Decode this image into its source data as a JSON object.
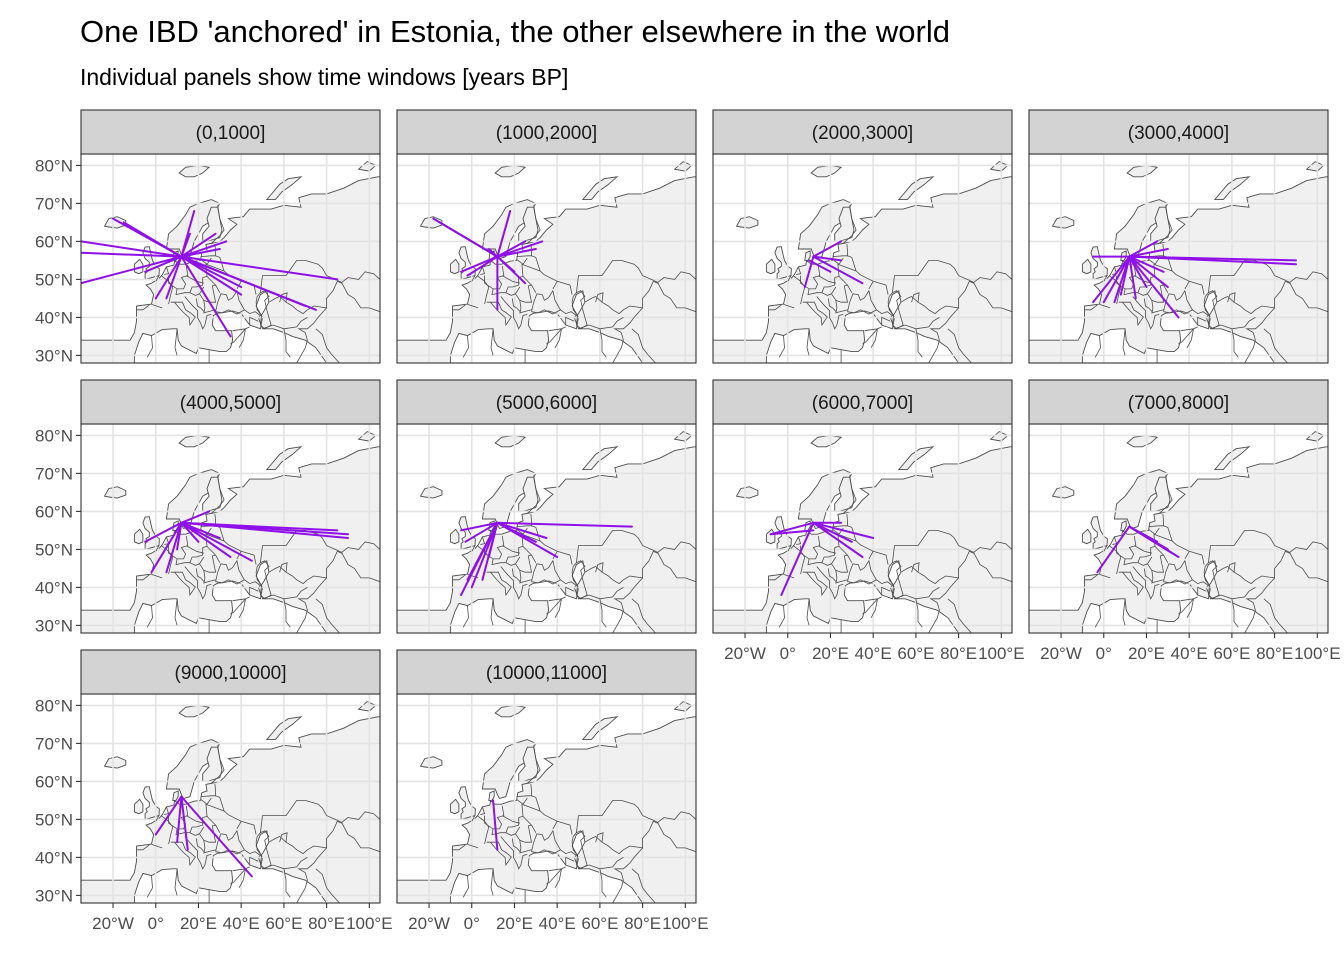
{
  "chart_data": {
    "type": "map",
    "title": "One IBD 'anchored' in Estonia, the other elsewhere in the world",
    "subtitle": "Individual panels show time windows [years BP]",
    "x_ticks": [
      "20°W",
      "0°",
      "20°E",
      "40°E",
      "60°E",
      "80°E",
      "100°E"
    ],
    "x_tick_values": [
      -20,
      0,
      20,
      40,
      60,
      80,
      100
    ],
    "y_ticks": [
      "30°N",
      "40°N",
      "50°N",
      "60°N",
      "70°N",
      "80°N"
    ],
    "y_tick_values": [
      30,
      40,
      50,
      60,
      70,
      80
    ],
    "xlim": [
      -35,
      105
    ],
    "ylim": [
      28,
      83
    ],
    "line_color": "#8f10e8",
    "land_fill": "#f0f0f0",
    "border_color": "#4d4d4d",
    "strip_fill": "#d3d3d3",
    "panels": [
      {
        "label": "(0,1000]",
        "segments": [
          [
            12,
            56,
            -35,
            60
          ],
          [
            12,
            56,
            -35,
            57
          ],
          [
            12,
            56,
            -35,
            49
          ],
          [
            12,
            56,
            -20,
            66
          ],
          [
            12,
            56,
            -15,
            65
          ],
          [
            12,
            56,
            18,
            68
          ],
          [
            12,
            56,
            16,
            62
          ],
          [
            12,
            56,
            28,
            62
          ],
          [
            12,
            56,
            33,
            60
          ],
          [
            12,
            56,
            30,
            58
          ],
          [
            12,
            56,
            85,
            50
          ],
          [
            12,
            56,
            75,
            42
          ],
          [
            12,
            56,
            70,
            43
          ],
          [
            12,
            56,
            40,
            48
          ],
          [
            12,
            56,
            30,
            52
          ],
          [
            12,
            56,
            35,
            35
          ],
          [
            12,
            56,
            40,
            46
          ],
          [
            12,
            56,
            5,
            45
          ],
          [
            12,
            56,
            -5,
            52
          ],
          [
            12,
            56,
            0,
            45
          ]
        ]
      },
      {
        "label": "(1000,2000]",
        "segments": [
          [
            12,
            56,
            -18,
            66
          ],
          [
            12,
            56,
            -15,
            65
          ],
          [
            12,
            56,
            -2,
            51
          ],
          [
            12,
            56,
            -5,
            52
          ],
          [
            12,
            56,
            18,
            68
          ],
          [
            12,
            56,
            25,
            60
          ],
          [
            12,
            56,
            33,
            60
          ],
          [
            12,
            56,
            30,
            58
          ],
          [
            12,
            56,
            25,
            49
          ],
          [
            12,
            56,
            12,
            42
          ],
          [
            12,
            56,
            20,
            52
          ],
          [
            12,
            56,
            8,
            58
          ]
        ]
      },
      {
        "label": "(2000,3000]",
        "segments": [
          [
            12,
            56,
            25,
            60
          ],
          [
            12,
            56,
            8,
            48
          ],
          [
            12,
            56,
            35,
            49
          ],
          [
            12,
            56,
            25,
            55
          ],
          [
            10,
            55,
            20,
            52
          ]
        ]
      },
      {
        "label": "(3000,4000]",
        "segments": [
          [
            12,
            56,
            -5,
            56
          ],
          [
            12,
            56,
            90,
            55
          ],
          [
            12,
            56,
            90,
            54
          ],
          [
            12,
            56,
            -5,
            44
          ],
          [
            12,
            56,
            0,
            44
          ],
          [
            12,
            56,
            5,
            44
          ],
          [
            12,
            56,
            25,
            60
          ],
          [
            12,
            56,
            30,
            58
          ],
          [
            12,
            56,
            35,
            40
          ],
          [
            12,
            56,
            30,
            48
          ],
          [
            12,
            56,
            28,
            52
          ],
          [
            12,
            56,
            20,
            48
          ],
          [
            12,
            56,
            15,
            45
          ],
          [
            12,
            56,
            8,
            46
          ]
        ]
      },
      {
        "label": "(4000,5000]",
        "segments": [
          [
            12,
            57,
            90,
            54
          ],
          [
            12,
            57,
            90,
            53
          ],
          [
            12,
            57,
            85,
            55
          ],
          [
            12,
            57,
            45,
            47
          ],
          [
            12,
            57,
            35,
            48
          ],
          [
            12,
            57,
            25,
            60
          ],
          [
            12,
            57,
            5,
            44
          ],
          [
            12,
            57,
            -2,
            44
          ],
          [
            12,
            57,
            -5,
            52
          ],
          [
            12,
            57,
            20,
            52
          ],
          [
            12,
            57,
            30,
            53
          ],
          [
            12,
            57,
            10,
            50
          ]
        ]
      },
      {
        "label": "(5000,6000]",
        "segments": [
          [
            12,
            57,
            -5,
            55
          ],
          [
            12,
            57,
            75,
            56
          ],
          [
            12,
            57,
            40,
            48
          ],
          [
            12,
            57,
            -2,
            42
          ],
          [
            12,
            57,
            -5,
            38
          ],
          [
            12,
            57,
            0,
            40
          ],
          [
            12,
            57,
            5,
            42
          ],
          [
            12,
            57,
            35,
            53
          ],
          [
            12,
            57,
            -3,
            52
          ],
          [
            12,
            57,
            8,
            48
          ],
          [
            12,
            57,
            30,
            52
          ]
        ]
      },
      {
        "label": "(6000,7000]",
        "segments": [
          [
            12,
            57,
            -8,
            54
          ],
          [
            12,
            57,
            25,
            57
          ],
          [
            12,
            57,
            40,
            53
          ],
          [
            12,
            57,
            35,
            48
          ],
          [
            12,
            57,
            -3,
            38
          ],
          [
            12,
            57,
            30,
            52
          ],
          [
            -8,
            54,
            12,
            55
          ]
        ]
      },
      {
        "label": "(7000,8000]",
        "segments": [
          [
            12,
            56,
            -3,
            44
          ],
          [
            12,
            56,
            35,
            48
          ],
          [
            12,
            56,
            30,
            50
          ],
          [
            12,
            56,
            25,
            52
          ],
          [
            12,
            56,
            32,
            49
          ]
        ]
      },
      {
        "label": "(9000,10000]",
        "segments": [
          [
            12,
            56,
            0,
            46
          ],
          [
            12,
            56,
            15,
            42
          ],
          [
            12,
            56,
            45,
            35
          ],
          [
            12,
            56,
            10,
            44
          ]
        ]
      },
      {
        "label": "(10000,11000]",
        "segments": [
          [
            10,
            55,
            12,
            42
          ]
        ]
      }
    ]
  }
}
